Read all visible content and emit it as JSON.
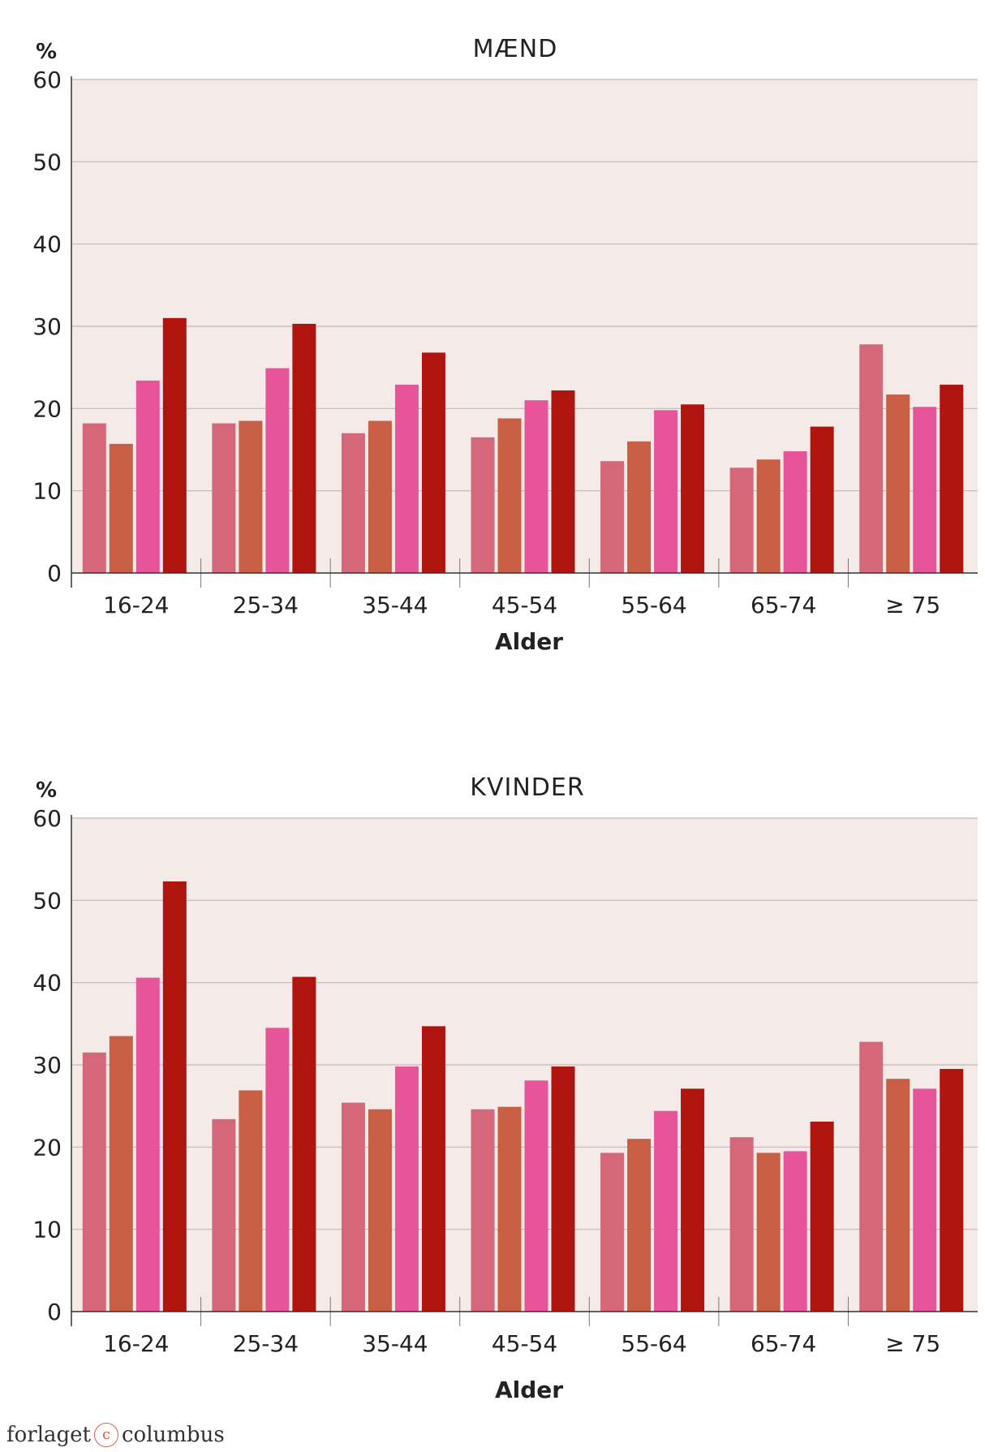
{
  "series_colors": [
    "#d4687a",
    "#c85e43",
    "#e8549a",
    "#b0140f"
  ],
  "chart_data": [
    {
      "type": "bar",
      "title": "MÆND",
      "unit": "%",
      "xlabel": "Alder",
      "ylabel": "%",
      "ylim": [
        0,
        60
      ],
      "yticks": [
        "0",
        "10",
        "20",
        "30",
        "40",
        "50",
        "60"
      ],
      "categories": [
        "16-24",
        "25-34",
        "35-44",
        "45-54",
        "55-64",
        "65-74",
        "≥ 75"
      ],
      "grid": true,
      "series": [
        {
          "values": [
            18.2,
            18.2,
            17.0,
            16.5,
            13.6,
            12.8,
            27.8
          ]
        },
        {
          "values": [
            15.7,
            18.5,
            18.5,
            18.8,
            16.0,
            13.8,
            21.7
          ]
        },
        {
          "values": [
            23.4,
            24.9,
            22.9,
            21.0,
            19.8,
            14.8,
            20.2
          ]
        },
        {
          "values": [
            31.0,
            30.3,
            26.8,
            22.2,
            20.5,
            17.8,
            22.9
          ]
        }
      ]
    },
    {
      "type": "bar",
      "title": "KVINDER",
      "unit": "%",
      "xlabel": "Alder",
      "ylabel": "%",
      "ylim": [
        0,
        60
      ],
      "yticks": [
        "0",
        "10",
        "20",
        "30",
        "40",
        "50",
        "60"
      ],
      "categories": [
        "16-24",
        "25-34",
        "35-44",
        "45-54",
        "55-64",
        "65-74",
        "≥ 75"
      ],
      "grid": true,
      "series": [
        {
          "values": [
            31.5,
            23.4,
            25.4,
            24.6,
            19.3,
            21.2,
            32.8
          ]
        },
        {
          "values": [
            33.5,
            26.9,
            24.6,
            24.9,
            21.0,
            19.3,
            28.3
          ]
        },
        {
          "values": [
            40.6,
            34.5,
            29.8,
            28.1,
            24.4,
            19.5,
            27.1
          ]
        },
        {
          "values": [
            52.3,
            40.7,
            34.7,
            29.8,
            27.1,
            23.1,
            29.5
          ]
        }
      ]
    }
  ],
  "footer": {
    "publisher_left": "forlaget",
    "publisher_mark": "c",
    "publisher_right": "columbus"
  }
}
